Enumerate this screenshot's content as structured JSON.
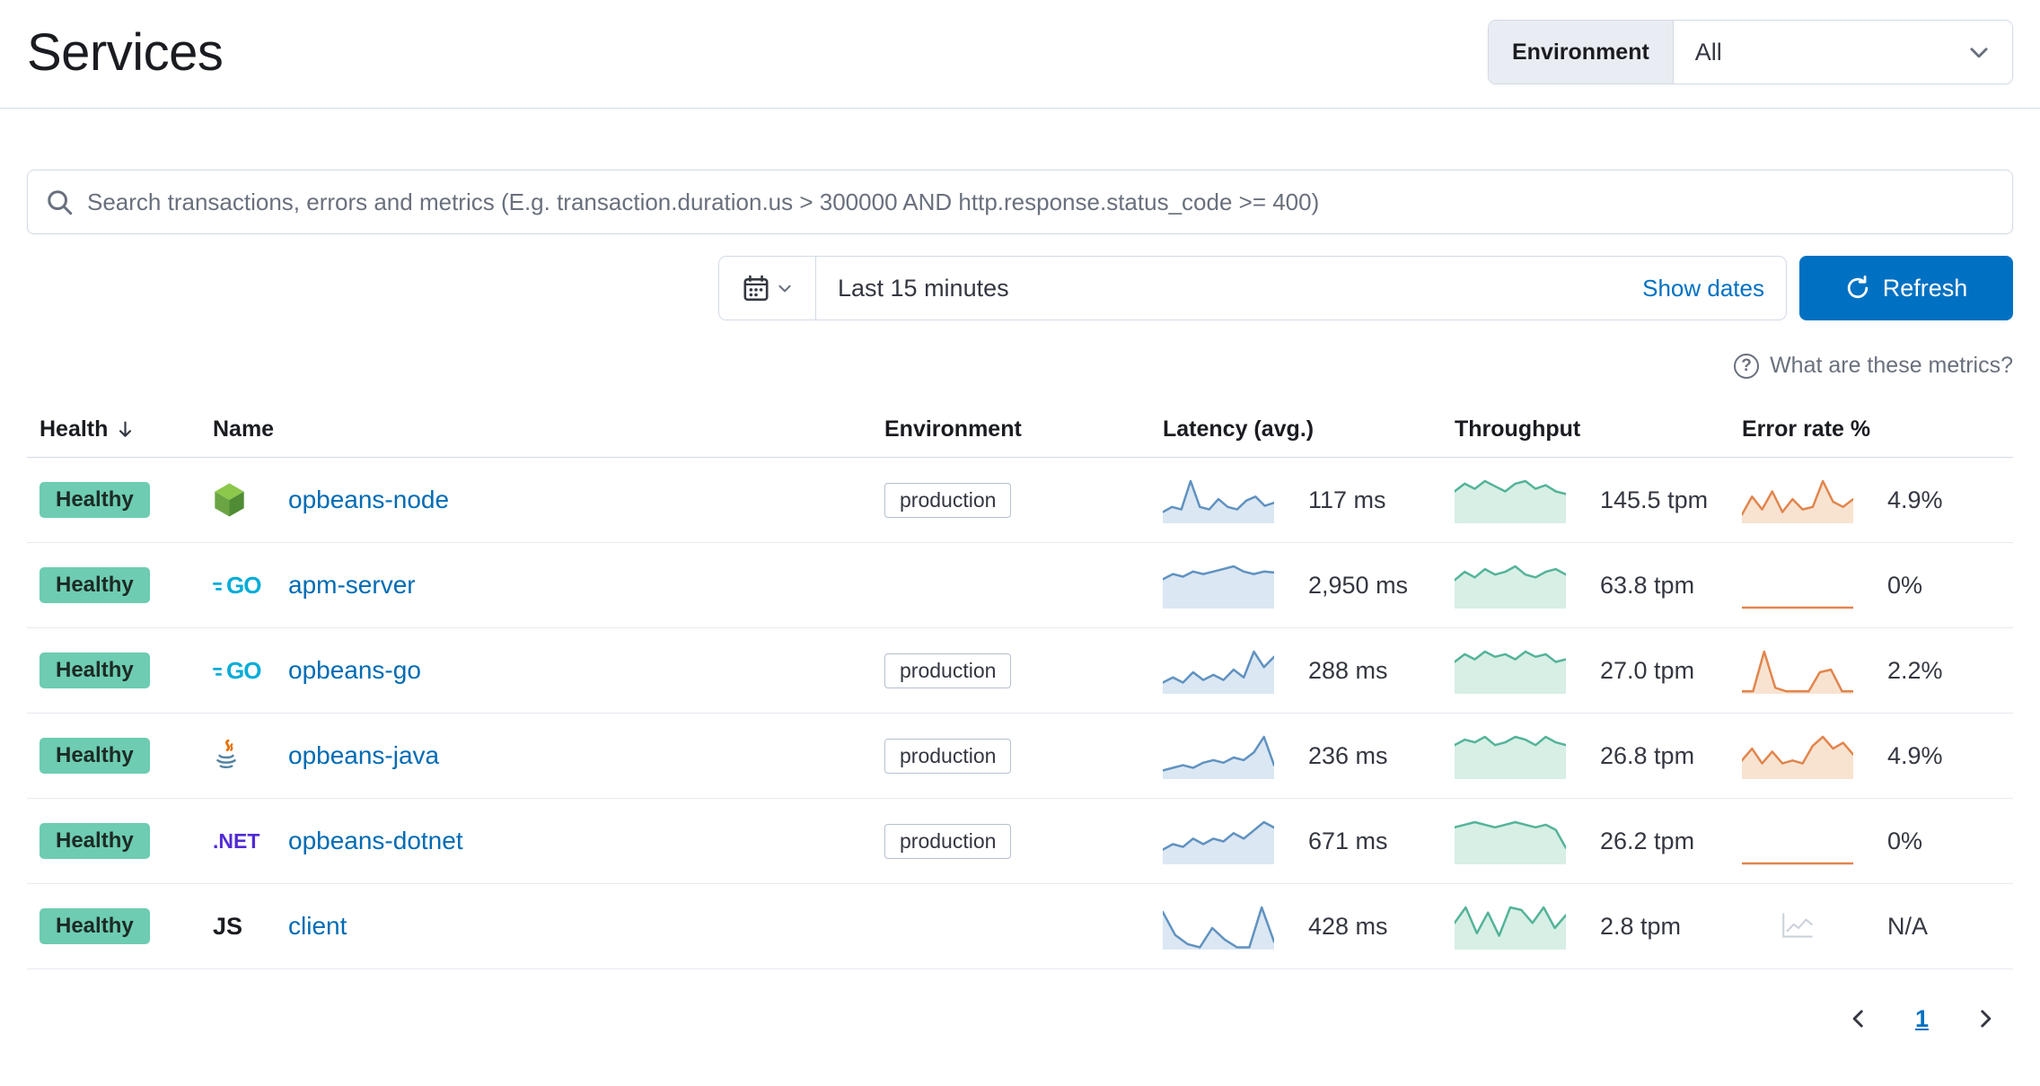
{
  "page": {
    "title": "Services"
  },
  "environment_filter": {
    "label": "Environment",
    "value": "All"
  },
  "search": {
    "placeholder": "Search transactions, errors and metrics (E.g. transaction.duration.us > 300000 AND http.response.status_code >= 400)"
  },
  "time_picker": {
    "value": "Last 15 minutes",
    "show_dates_label": "Show dates",
    "refresh_label": "Refresh"
  },
  "metrics_help_label": "What are these metrics?",
  "table": {
    "headers": {
      "health": "Health",
      "name": "Name",
      "environment": "Environment",
      "latency": "Latency (avg.)",
      "throughput": "Throughput",
      "error_rate": "Error rate %"
    },
    "rows": [
      {
        "health": "Healthy",
        "name": "opbeans-node",
        "icon": "node",
        "icon_text": "",
        "environment": "production",
        "latency": {
          "value": "117 ms",
          "spark": [
            2,
            3,
            2.5,
            8,
            3,
            2.5,
            4.5,
            3,
            2.5,
            4.2,
            5,
            3.2,
            3.8
          ]
        },
        "throughput": {
          "value": "145.5 tpm",
          "spark": [
            6,
            7.5,
            6.5,
            8,
            7,
            6,
            7.5,
            8,
            6.5,
            7.2,
            6,
            5.5
          ]
        },
        "error_rate": {
          "value": "4.9%",
          "na": false,
          "spark": [
            1.5,
            5,
            2.5,
            6,
            2,
            4.5,
            2.5,
            3,
            8,
            4,
            3,
            4.5
          ]
        }
      },
      {
        "health": "Healthy",
        "name": "apm-server",
        "icon": "go",
        "icon_text": "GO",
        "environment": "",
        "latency": {
          "value": "2,950 ms",
          "spark": [
            5.5,
            6.5,
            6,
            7,
            6.5,
            7,
            7.5,
            8,
            7,
            6.5,
            7,
            6.8
          ]
        },
        "throughput": {
          "value": "63.8 tpm",
          "spark": [
            5,
            6.5,
            5.5,
            7,
            6,
            6.5,
            7.5,
            6,
            5.5,
            6.5,
            7,
            6
          ]
        },
        "error_rate": {
          "value": "0%",
          "na": false,
          "spark": [
            0,
            0,
            0,
            0,
            0,
            0,
            0,
            0,
            0,
            0,
            0,
            0
          ]
        }
      },
      {
        "health": "Healthy",
        "name": "opbeans-go",
        "icon": "go",
        "icon_text": "GO",
        "environment": "production",
        "latency": {
          "value": "288 ms",
          "spark": [
            2,
            3,
            2,
            4,
            2.5,
            3.5,
            2.5,
            4.5,
            3,
            8,
            5,
            7
          ]
        },
        "throughput": {
          "value": "27.0 tpm",
          "spark": [
            6,
            7.5,
            6.5,
            8,
            7,
            7.5,
            6.5,
            8,
            7,
            7.5,
            6,
            6.5
          ]
        },
        "error_rate": {
          "value": "2.2%",
          "na": false,
          "spark": [
            0.3,
            0.3,
            8,
            1,
            0.3,
            0.3,
            0.3,
            4,
            4.5,
            0.3,
            0.3
          ]
        }
      },
      {
        "health": "Healthy",
        "name": "opbeans-java",
        "icon": "java",
        "icon_text": "",
        "environment": "production",
        "latency": {
          "value": "236 ms",
          "spark": [
            1.5,
            2,
            2.5,
            2,
            3,
            3.5,
            3,
            4,
            3.5,
            5,
            8,
            2.5
          ]
        },
        "throughput": {
          "value": "26.8 tpm",
          "spark": [
            6,
            7,
            6.5,
            7.5,
            6,
            6.5,
            7.5,
            7,
            6,
            7.5,
            6.5,
            6
          ]
        },
        "error_rate": {
          "value": "4.9%",
          "na": false,
          "spark": [
            3,
            5,
            2.5,
            4.5,
            2.5,
            3,
            2.5,
            5.5,
            7,
            5,
            6,
            4
          ]
        }
      },
      {
        "health": "Healthy",
        "name": "opbeans-dotnet",
        "icon": "dotnet",
        "icon_text": ".NET",
        "environment": "production",
        "latency": {
          "value": "671 ms",
          "spark": [
            2.5,
            3.5,
            3,
            4.5,
            3.5,
            4.5,
            4,
            5.5,
            4.5,
            6,
            7.5,
            6.5
          ]
        },
        "throughput": {
          "value": "26.2 tpm",
          "spark": [
            7,
            7.5,
            8,
            7.5,
            7,
            7.5,
            8,
            7.5,
            7,
            7.5,
            6.5,
            3
          ]
        },
        "error_rate": {
          "value": "0%",
          "na": false,
          "spark": [
            0,
            0,
            0,
            0,
            0,
            0,
            0,
            0,
            0,
            0,
            0,
            0
          ]
        }
      },
      {
        "health": "Healthy",
        "name": "client",
        "icon": "js",
        "icon_text": "JS",
        "environment": "",
        "latency": {
          "value": "428 ms",
          "spark": [
            8,
            3,
            1,
            0.3,
            4.5,
            2,
            0.3,
            0.3,
            9,
            1.5
          ]
        },
        "throughput": {
          "value": "2.8 tpm",
          "spark": [
            5,
            8,
            3,
            7,
            2.5,
            8,
            7.5,
            5,
            8,
            4,
            6.5
          ]
        },
        "error_rate": {
          "value": "N/A",
          "na": true,
          "spark": []
        }
      }
    ]
  },
  "pagination": {
    "current_page": "1"
  },
  "colors": {
    "primary": "#0071c2",
    "link": "#006bb4",
    "healthy_badge": "#6dccb1",
    "latency_stroke": "#6092c0",
    "latency_fill": "#dbe7f3",
    "throughput_stroke": "#54b399",
    "throughput_fill": "#d7efe5",
    "error_stroke": "#e1854d",
    "error_fill": "#f8e3d1"
  }
}
